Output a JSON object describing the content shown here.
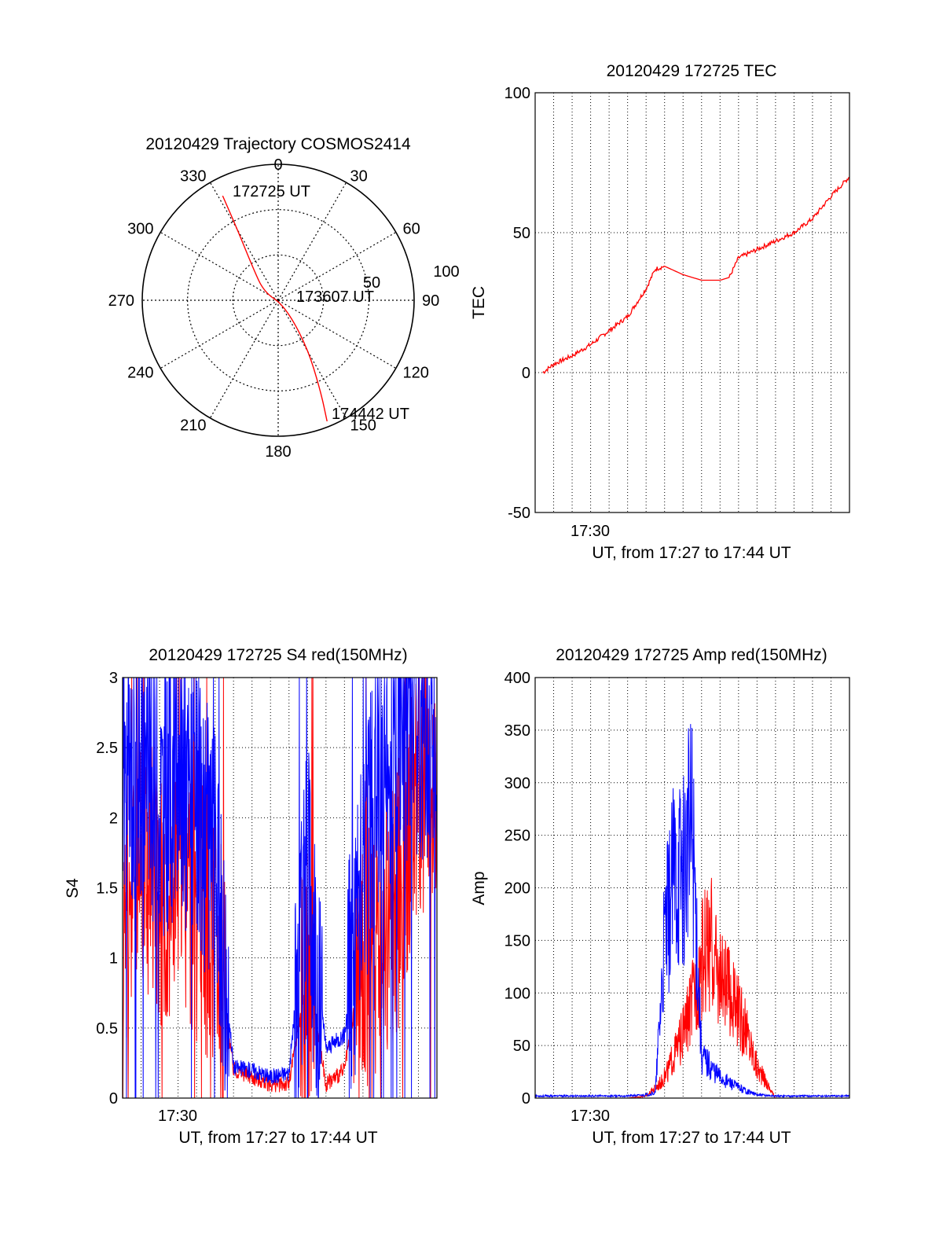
{
  "colors": {
    "red": "#ff0000",
    "blue": "#0000ff",
    "axis": "#000000",
    "grid": "#000000",
    "background": "#ffffff"
  },
  "chart_data": [
    {
      "type": "polar",
      "title": "20120429 Trajectory COSMOS2414",
      "azimuth_labels": [
        "0",
        "30",
        "60",
        "90",
        "120",
        "150",
        "180",
        "210",
        "240",
        "270",
        "300",
        "330"
      ],
      "radial_labels": [
        "50",
        "100"
      ],
      "radial_range": [
        0,
        100
      ],
      "grid": true,
      "series": [
        {
          "color": "red",
          "points": [
            {
              "azimuth": 332,
              "radius": 87
            },
            {
              "azimuth": 330,
              "radius": 60
            },
            {
              "azimuth": 322,
              "radius": 30
            },
            {
              "azimuth": 300,
              "radius": 12
            },
            {
              "azimuth": 130,
              "radius": 6
            },
            {
              "azimuth": 148,
              "radius": 40
            },
            {
              "azimuth": 155,
              "radius": 74
            },
            {
              "azimuth": 158,
              "radius": 96
            }
          ]
        }
      ],
      "annotations": [
        "172725 UT",
        "173607 UT",
        "174442 UT"
      ]
    },
    {
      "type": "line",
      "title": "20120429 172725 TEC",
      "ylabel": "TEC",
      "xlabel": "UT, from 17:27 to 17:44 UT",
      "x_tick_labels": [
        "17:30"
      ],
      "y_ticks": [
        "-50",
        "0",
        "50",
        "100"
      ],
      "xlim": [
        "17:27",
        "17:44"
      ],
      "ylim": [
        -50,
        100
      ],
      "grid": true,
      "series": [
        {
          "color": "red",
          "x": [
            "17:27:25",
            "17:28",
            "17:29",
            "17:30",
            "17:31",
            "17:32",
            "17:33",
            "17:33:30",
            "17:34",
            "17:35",
            "17:36",
            "17:37",
            "17:37:30",
            "17:38",
            "17:39",
            "17:40",
            "17:41",
            "17:42",
            "17:43",
            "17:44"
          ],
          "values": [
            0,
            3,
            6,
            10,
            15,
            20,
            30,
            37,
            38,
            35,
            33,
            33,
            34,
            41,
            44,
            47,
            50,
            55,
            63,
            70
          ]
        }
      ]
    },
    {
      "type": "line",
      "title": "20120429 172725 S4 red(150MHz)",
      "ylabel": "S4",
      "xlabel": "UT, from 17:27 to 17:44 UT",
      "x_tick_labels": [
        "17:30"
      ],
      "y_ticks": [
        "0",
        "0.5",
        "1",
        "1.5",
        "2",
        "2.5",
        "3"
      ],
      "xlim": [
        "17:27",
        "17:44"
      ],
      "ylim": [
        0,
        3
      ],
      "grid": true,
      "series": [
        {
          "color": "blue",
          "x": [
            "17:27",
            "17:28",
            "17:29",
            "17:30",
            "17:31",
            "17:32",
            "17:33",
            "17:34",
            "17:35",
            "17:36",
            "17:37",
            "17:38",
            "17:39",
            "17:40",
            "17:41",
            "17:42",
            "17:43",
            "17:44"
          ],
          "values": [
            2.2,
            2.4,
            2.1,
            2.3,
            2.0,
            1.7,
            0.22,
            0.2,
            0.15,
            0.18,
            1.6,
            0.35,
            0.45,
            1.6,
            2.4,
            2.6,
            2.7,
            2.5
          ]
        },
        {
          "color": "red",
          "x": [
            "17:27",
            "17:28",
            "17:29",
            "17:30",
            "17:31",
            "17:32",
            "17:33",
            "17:34",
            "17:35",
            "17:36",
            "17:37",
            "17:38",
            "17:39",
            "17:40",
            "17:41",
            "17:42",
            "17:43",
            "17:44"
          ],
          "values": [
            1.3,
            1.8,
            1.4,
            1.6,
            1.4,
            1.2,
            0.2,
            0.15,
            0.1,
            0.1,
            0.9,
            0.1,
            0.2,
            1.0,
            1.2,
            1.5,
            2.3,
            2.2
          ]
        }
      ]
    },
    {
      "type": "line",
      "title": "20120429 172725 Amp red(150MHz)",
      "ylabel": "Amp",
      "xlabel": "UT, from 17:27 to 17:44 UT",
      "x_tick_labels": [
        "17:30"
      ],
      "y_ticks": [
        "0",
        "50",
        "100",
        "150",
        "200",
        "250",
        "300",
        "350",
        "400"
      ],
      "xlim": [
        "17:27",
        "17:44"
      ],
      "ylim": [
        0,
        400
      ],
      "grid": true,
      "series": [
        {
          "color": "blue",
          "x": [
            "17:27",
            "17:28",
            "17:29",
            "17:30",
            "17:31",
            "17:32",
            "17:33",
            "17:33:30",
            "17:34",
            "17:34:30",
            "17:35",
            "17:35:30",
            "17:36",
            "17:37",
            "17:38",
            "17:39",
            "17:40",
            "17:41",
            "17:42",
            "17:43",
            "17:44"
          ],
          "values": [
            2,
            2,
            2,
            2,
            2,
            2,
            3,
            5,
            150,
            210,
            220,
            260,
            40,
            20,
            10,
            3,
            2,
            2,
            2,
            2,
            2
          ]
        },
        {
          "color": "red",
          "x": [
            "17:27",
            "17:28",
            "17:29",
            "17:30",
            "17:31",
            "17:32",
            "17:33",
            "17:33:30",
            "17:34",
            "17:34:30",
            "17:35",
            "17:35:30",
            "17:36",
            "17:36:30",
            "17:37",
            "17:37:30",
            "17:38",
            "17:38:30",
            "17:39",
            "17:40",
            "17:41",
            "17:42",
            "17:43",
            "17:44"
          ],
          "values": [
            0,
            0,
            0,
            0,
            0,
            0,
            2,
            10,
            20,
            40,
            60,
            90,
            130,
            150,
            110,
            100,
            80,
            60,
            30,
            0,
            0,
            0,
            0,
            0
          ]
        }
      ]
    }
  ]
}
